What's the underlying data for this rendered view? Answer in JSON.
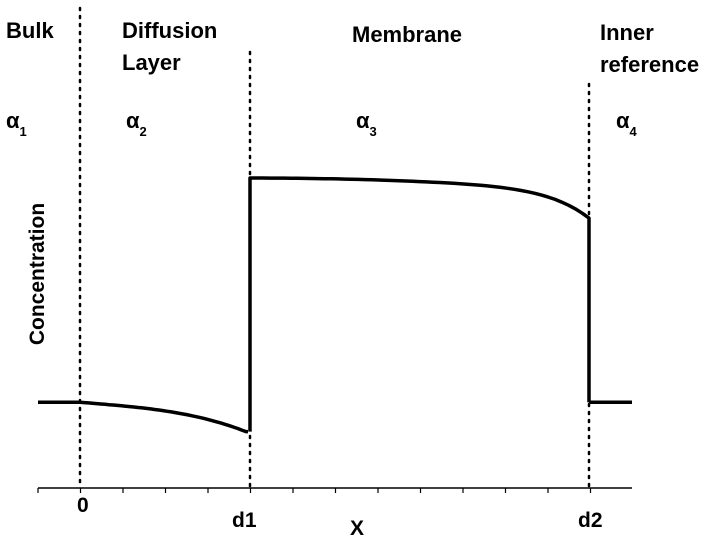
{
  "regions": {
    "bulk": "Bulk",
    "diffusion_line1": "Diffusion",
    "diffusion_line2": "Layer",
    "membrane": "Membrane",
    "inner_line1": "Inner",
    "inner_line2": "reference"
  },
  "alphas": [
    {
      "symbol": "α",
      "sub": "1"
    },
    {
      "symbol": "α",
      "sub": "2"
    },
    {
      "symbol": "α",
      "sub": "3"
    },
    {
      "symbol": "α",
      "sub": "4"
    }
  ],
  "axes": {
    "ylabel": "Concentration",
    "xlabel": "X",
    "ticks": [
      "0",
      "d1",
      "d2"
    ]
  },
  "profile": {
    "bulk": 0.16,
    "diffusion_dip": 0.05,
    "membrane_entry": 1.0,
    "membrane_exit": 0.85,
    "inner": 0.16
  }
}
